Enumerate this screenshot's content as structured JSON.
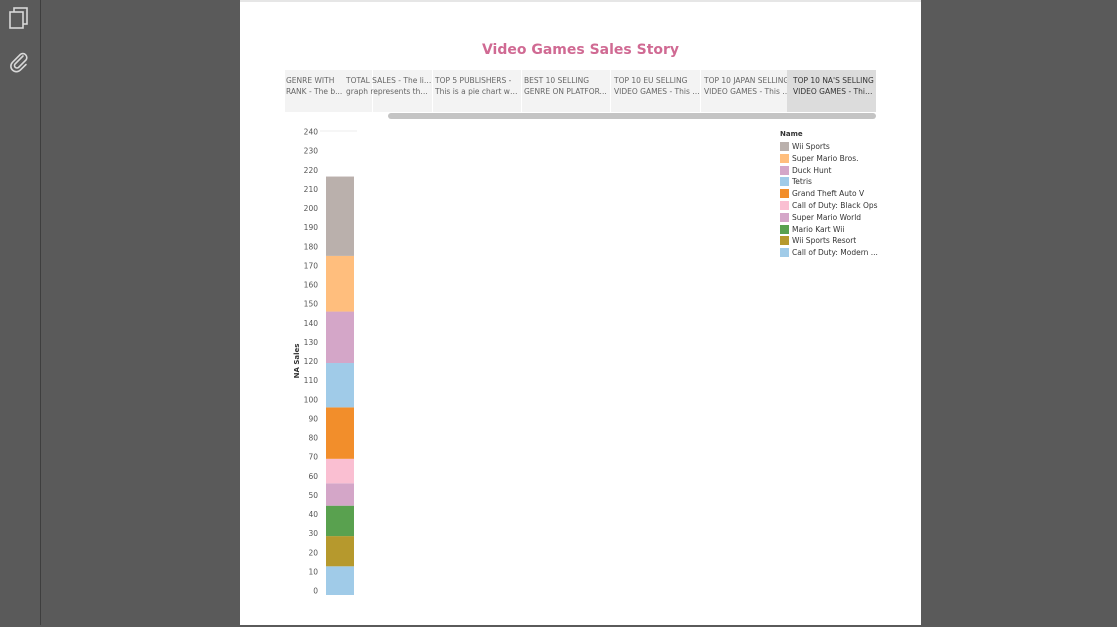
{
  "toolbar": {
    "icons": [
      "pages-icon",
      "attachment-icon"
    ]
  },
  "story": {
    "title": "Video Games Sales Story",
    "points": [
      {
        "line1": "GENRE WITH",
        "line2": "RANK - The b..."
      },
      {
        "line1": "TOTAL SALES - The line",
        "line2": "graph represents the ..."
      },
      {
        "line1": "TOP 5 PUBLISHERS -",
        "line2": "This is a pie chart whi..."
      },
      {
        "line1": "BEST 10 SELLING",
        "line2": "GENRE ON PLATFOR..."
      },
      {
        "line1": "TOP 10 EU SELLING",
        "line2": "VIDEO GAMES - This i..."
      },
      {
        "line1": "TOP 10 JAPAN SELLING",
        "line2": "VIDEO GAMES - This b..."
      },
      {
        "line1": "TOP 10 NA'S SELLING",
        "line2": "VIDEO GAMES - This i..."
      }
    ],
    "active_index": 6
  },
  "chart_data": {
    "type": "bar",
    "stacked": true,
    "title": "",
    "xlabel": "",
    "ylabel": "NA Sales",
    "ylim": [
      0,
      240
    ],
    "yticks": [
      0,
      10,
      20,
      30,
      40,
      50,
      60,
      70,
      80,
      90,
      100,
      110,
      120,
      130,
      140,
      150,
      160,
      170,
      180,
      190,
      200,
      210,
      220,
      230,
      240
    ],
    "legend_title": "Name",
    "legend_position": "top-right",
    "series": [
      {
        "name": "Wii Sports",
        "value": 41.5,
        "color": "#bab0ac"
      },
      {
        "name": "Super Mario Bros.",
        "value": 29.1,
        "color": "#ffbe7d"
      },
      {
        "name": "Duck Hunt",
        "value": 26.9,
        "color": "#d4a6c8"
      },
      {
        "name": "Tetris",
        "value": 23.2,
        "color": "#a0cbe8"
      },
      {
        "name": "Grand Theft Auto V",
        "value": 26.9,
        "color": "#f28e2b"
      },
      {
        "name": "Call of Duty: Black Ops",
        "value": 12.8,
        "color": "#fabfd2"
      },
      {
        "name": "Super Mario World",
        "value": 11.7,
        "color": "#d4a6c8"
      },
      {
        "name": "Mario Kart Wii",
        "value": 15.9,
        "color": "#59a14f"
      },
      {
        "name": "Wii Sports Resort",
        "value": 15.8,
        "color": "#b6992d"
      },
      {
        "name": "Call of Duty: Modern ...",
        "value": 15.0,
        "color": "#a0cbe8"
      }
    ]
  }
}
